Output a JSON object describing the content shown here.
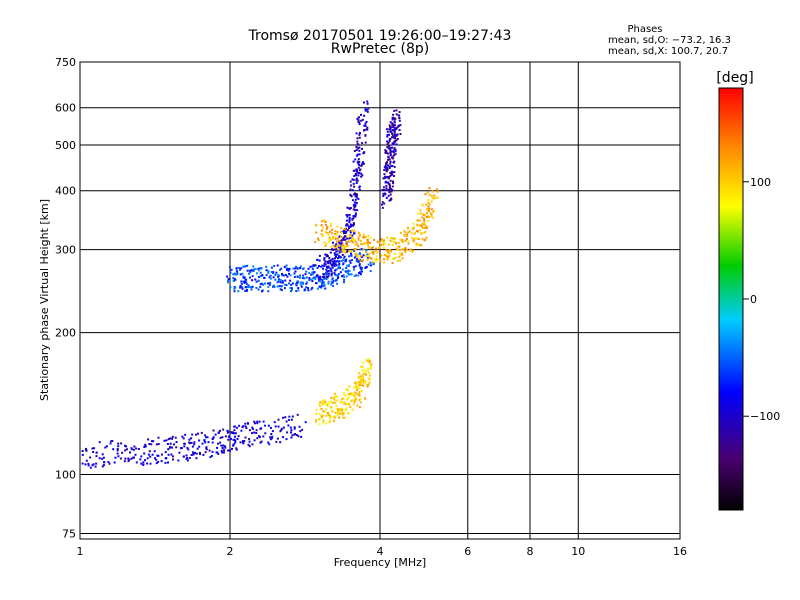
{
  "chart_data": {
    "type": "scatter",
    "title": "Tromsø 20170501 19:26:00–19:27:43",
    "subtitle": "RwPretec (8p)",
    "xlabel": "Frequency [MHz]",
    "ylabel": "Stationary phase Virtual Height [km]",
    "x_scale": "log",
    "y_scale": "log",
    "xlim": [
      1,
      16
    ],
    "ylim": [
      73,
      750
    ],
    "x_ticks": [
      "1",
      "2",
      "4",
      "6",
      "8",
      "10",
      "16"
    ],
    "y_ticks": [
      "75",
      "100",
      "200",
      "300",
      "400",
      "500",
      "600",
      "750"
    ],
    "grid": true,
    "info_box": {
      "title": "Phases",
      "line1": "mean, sd,O: −73.2, 16.3",
      "line2": "mean, sd,X: 100.7, 20.7"
    },
    "colorbar": {
      "label": "[deg]",
      "ticks": [
        "100",
        "0",
        "−100"
      ],
      "range": [
        -180,
        180
      ],
      "colors": [
        "#000000",
        "#4a0070",
        "#0000ff",
        "#00ccff",
        "#00cc00",
        "#ffff00",
        "#ff8800",
        "#ff0000"
      ]
    },
    "traces": [
      {
        "kind": "O-trace low F",
        "phase": -95,
        "x": [
          1.0,
          1.3,
          1.6,
          1.9,
          2.2,
          2.8
        ],
        "y": [
          110,
          112,
          114,
          118,
          122,
          128
        ]
      },
      {
        "kind": "O-trace F layer",
        "phase": -60,
        "x": [
          2.0,
          2.2,
          2.5,
          2.8,
          3.1,
          3.4,
          3.8
        ],
        "y": [
          260,
          262,
          262,
          262,
          264,
          275,
          290
        ]
      },
      {
        "kind": "O-trace steep",
        "phase": -100,
        "x": [
          3.0,
          3.3,
          3.5,
          3.6,
          3.7
        ],
        "y": [
          270,
          300,
          350,
          450,
          600
        ]
      },
      {
        "kind": "O-trace upper",
        "phase": -110,
        "x": [
          4.1,
          4.15,
          4.2,
          4.3
        ],
        "y": [
          380,
          450,
          520,
          570
        ]
      },
      {
        "kind": "X-trace",
        "phase": 100,
        "x": [
          3.0,
          3.3,
          3.6,
          3.8
        ],
        "y": [
          135,
          140,
          150,
          170
        ]
      },
      {
        "kind": "X-trace upper",
        "phase": 110,
        "x": [
          3.0,
          3.4,
          3.8,
          4.3,
          4.8,
          5.1
        ],
        "y": [
          330,
          315,
          300,
          300,
          330,
          390
        ]
      }
    ]
  }
}
